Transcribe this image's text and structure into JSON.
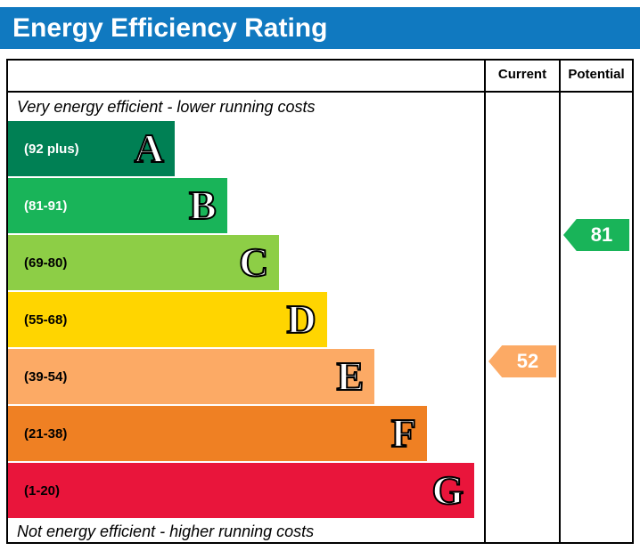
{
  "title": "Energy Efficiency Rating",
  "columns": {
    "current": "Current",
    "potential": "Potential"
  },
  "notes": {
    "top": "Very energy efficient - lower running costs",
    "bottom": "Not energy efficient - higher running costs"
  },
  "colors": {
    "header_blue": "#1079c0",
    "border": "#000000"
  },
  "chart_data": {
    "type": "bar",
    "title": "Energy Efficiency Rating",
    "bands": [
      {
        "letter": "A",
        "range": "(92 plus)",
        "color": "#008054",
        "width_pct": 35
      },
      {
        "letter": "B",
        "range": "(81-91)",
        "color": "#19b459",
        "width_pct": 46
      },
      {
        "letter": "C",
        "range": "(69-80)",
        "color": "#8dce46",
        "width_pct": 57
      },
      {
        "letter": "D",
        "range": "(55-68)",
        "color": "#ffd500",
        "width_pct": 67
      },
      {
        "letter": "E",
        "range": "(39-54)",
        "color": "#fcaa65",
        "width_pct": 77
      },
      {
        "letter": "F",
        "range": "(21-38)",
        "color": "#ef8023",
        "width_pct": 88
      },
      {
        "letter": "G",
        "range": "(1-20)",
        "color": "#e9153b",
        "width_pct": 98
      }
    ],
    "current": {
      "value": 52,
      "band": "E",
      "color": "#fcaa65"
    },
    "potential": {
      "value": 81,
      "band": "B",
      "color": "#19b459"
    }
  }
}
